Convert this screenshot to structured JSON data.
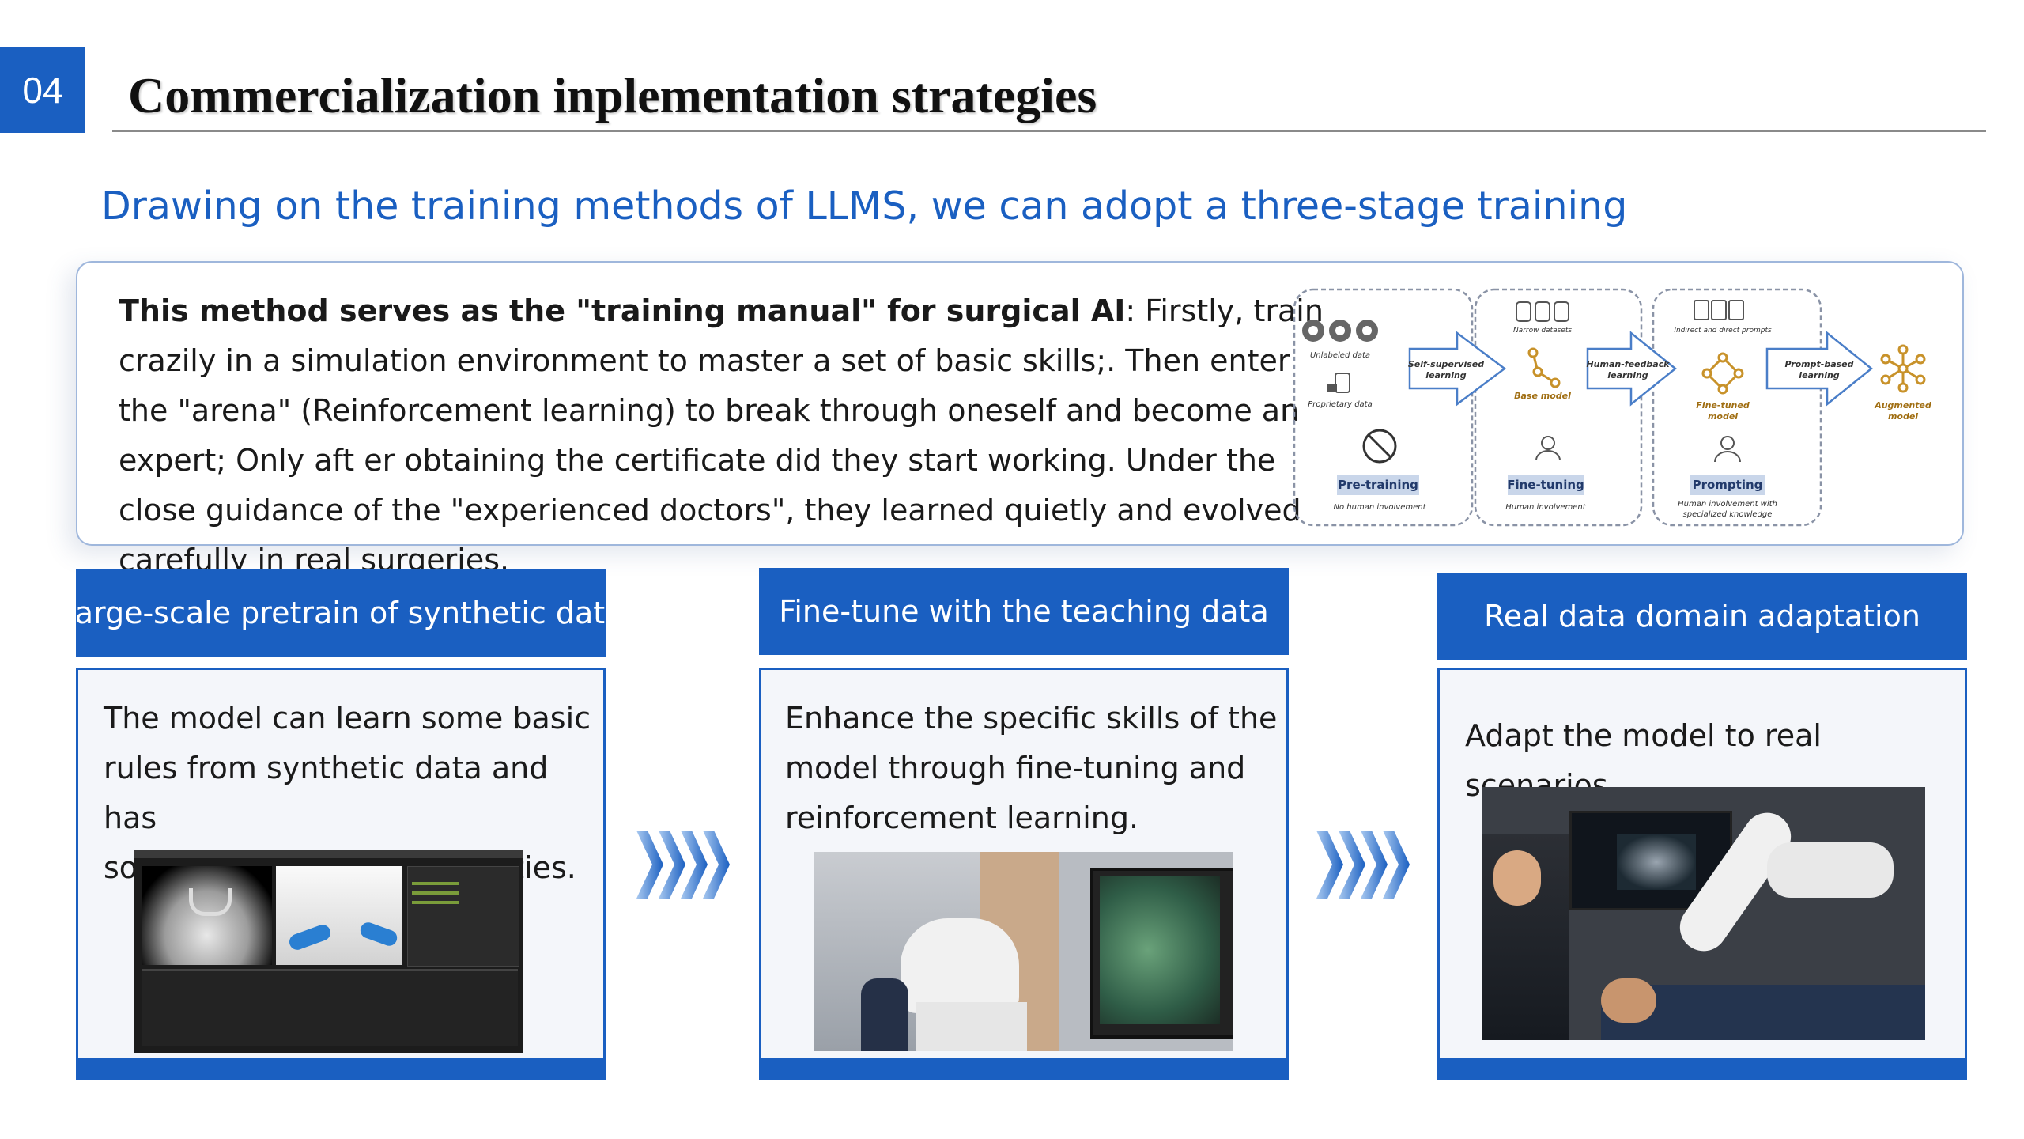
{
  "header": {
    "section_number": "04",
    "title": "Commercialization inplementation strategies"
  },
  "subtitle": "Drawing on the training methods of LLMS, we can adopt a three-stage training",
  "intro": {
    "bold_lead": "This method serves as the \"training manual\" for surgical AI",
    "body": ": Firstly, train crazily in a simulation environment to master a set of basic skills;. Then enter the \"arena\" (Reinforcement learning) to break through oneself and become an expert; Only aft er obtaining the certificate did they start working. Under the close guidance of the \"experienced doctors\", they learned quietly and evolved carefully in real surgeries."
  },
  "diagram": {
    "unlabeled_data": "Unlabeled data",
    "proprietary_data": "Proprietary data",
    "pretraining": "Pre-training",
    "no_human": "No human involvement",
    "self_supervised": [
      "Self-supervised",
      "learning"
    ],
    "narrow_datasets": "Narrow datasets",
    "base_model": "Base model",
    "fine_tuning": "Fine-tuning",
    "human_involvement": "Human involvement",
    "human_feedback": [
      "Human-feedback",
      "learning"
    ],
    "indirect_prompts": "Indirect and direct prompts",
    "fine_tuned_model": [
      "Fine-tuned",
      "model"
    ],
    "prompting": "Prompting",
    "human_specialized": [
      "Human involvement with",
      "specialized knowledge"
    ],
    "prompt_based": [
      "Prompt-based",
      "learning"
    ],
    "augmented_model": [
      "Augmented",
      "model"
    ]
  },
  "stages": [
    {
      "title": "Large-scale pretrain of synthetic data",
      "lines": [
        "The model can learn some basic",
        "rules from synthetic data and has",
        "some fundamental capabilities."
      ]
    },
    {
      "title": "Fine-tune with the teaching data",
      "lines": [
        "Enhance the specific skills of the",
        "model through fine-tuning and",
        "reinforcement learning."
      ]
    },
    {
      "title": "Real data domain adaptation",
      "lines": [
        "Adapt the model to real scenarios"
      ]
    }
  ],
  "colors": {
    "accent": "#1a5fc1",
    "card_bg": "#f4f6fa",
    "diagram_gold": "#c8922a"
  }
}
